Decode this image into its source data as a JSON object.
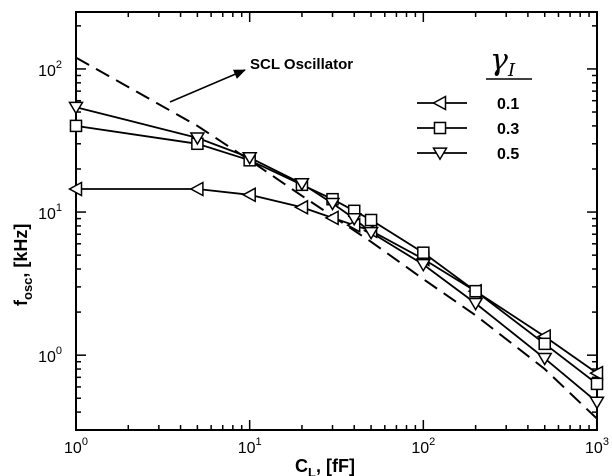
{
  "chart_data": {
    "type": "line",
    "xscale": "log",
    "yscale": "log",
    "xlim": [
      1,
      1000
    ],
    "ylim": [
      0.3,
      250
    ],
    "xlabel_main": "C",
    "xlabel_sub": "L",
    "xlabel_rest": ", [fF]",
    "ylabel_main": "f",
    "ylabel_sub": "osc",
    "ylabel_rest": ", [kHz]",
    "x_ticks": [
      {
        "value": 1,
        "base": "10",
        "exp": "0"
      },
      {
        "value": 10,
        "base": "10",
        "exp": "1"
      },
      {
        "value": 100,
        "base": "10",
        "exp": "2"
      },
      {
        "value": 1000,
        "base": "10",
        "exp": "3"
      }
    ],
    "y_ticks": [
      {
        "value": 1,
        "base": "10",
        "exp": "0"
      },
      {
        "value": 10,
        "base": "10",
        "exp": "1"
      },
      {
        "value": 100,
        "base": "10",
        "exp": "2"
      }
    ],
    "legend_title": "γ",
    "legend_title_sub": "I",
    "legend_position": "top-right",
    "annotation": "SCL Oscillator",
    "reference": {
      "x": [
        1,
        5,
        10,
        20,
        50,
        100,
        200,
        500,
        1000
      ],
      "y": [
        120,
        40,
        23,
        13,
        6.2,
        3.4,
        1.9,
        0.8,
        0.36
      ]
    },
    "series": [
      {
        "name": "0.1",
        "marker": "triangle-left",
        "x": [
          1,
          5,
          10,
          20,
          30,
          40,
          50,
          100,
          200,
          500,
          1000
        ],
        "y": [
          14.5,
          14.5,
          13.2,
          10.8,
          9.1,
          8.1,
          7.4,
          4.7,
          2.8,
          1.35,
          0.75
        ]
      },
      {
        "name": "0.3",
        "marker": "square",
        "x": [
          1,
          5,
          10,
          20,
          30,
          40,
          50,
          100,
          200,
          500,
          1000
        ],
        "y": [
          40,
          30,
          23,
          15.5,
          12.3,
          10.2,
          8.8,
          5.2,
          2.8,
          1.2,
          0.63
        ]
      },
      {
        "name": "0.5",
        "marker": "triangle-down",
        "x": [
          1,
          5,
          10,
          20,
          30,
          40,
          50,
          100,
          200,
          500,
          1000
        ],
        "y": [
          54,
          33,
          24,
          15.8,
          11.5,
          9.0,
          7.2,
          4.3,
          2.3,
          0.95,
          0.47
        ]
      }
    ]
  }
}
